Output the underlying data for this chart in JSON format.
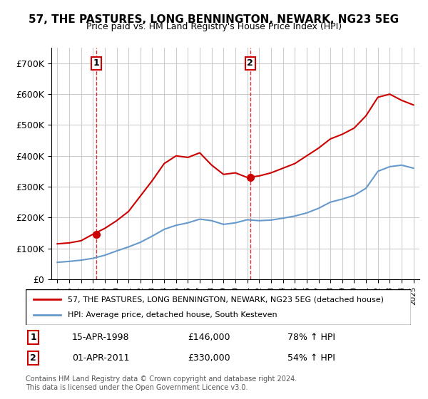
{
  "title": "57, THE PASTURES, LONG BENNINGTON, NEWARK, NG23 5EG",
  "subtitle": "Price paid vs. HM Land Registry's House Price Index (HPI)",
  "legend_line1": "57, THE PASTURES, LONG BENNINGTON, NEWARK, NG23 5EG (detached house)",
  "legend_line2": "HPI: Average price, detached house, South Kesteven",
  "footnote": "Contains HM Land Registry data © Crown copyright and database right 2024.\nThis data is licensed under the Open Government Licence v3.0.",
  "marker1_label": "1",
  "marker1_date": "15-APR-1998",
  "marker1_price": "£146,000",
  "marker1_hpi": "78% ↑ HPI",
  "marker2_label": "2",
  "marker2_date": "01-APR-2011",
  "marker2_price": "£330,000",
  "marker2_hpi": "54% ↑ HPI",
  "red_color": "#cc0000",
  "blue_color": "#6699cc",
  "marker_box_color": "#cc0000",
  "grid_color": "#cccccc",
  "background_color": "#ffffff",
  "ylim": [
    0,
    750000
  ],
  "yticks": [
    0,
    100000,
    200000,
    300000,
    400000,
    500000,
    600000,
    700000
  ],
  "ytick_labels": [
    "£0",
    "£100K",
    "£200K",
    "£300K",
    "£400K",
    "£500K",
    "£600K",
    "£700K"
  ],
  "x_start_year": 1995,
  "x_end_year": 2025,
  "sale1_year": 1998.29,
  "sale1_price": 146000,
  "sale2_year": 2011.25,
  "sale2_price": 330000,
  "hpi_years": [
    1995,
    1996,
    1997,
    1998,
    1999,
    2000,
    2001,
    2002,
    2003,
    2004,
    2005,
    2006,
    2007,
    2008,
    2009,
    2010,
    2011,
    2012,
    2013,
    2014,
    2015,
    2016,
    2017,
    2018,
    2019,
    2020,
    2021,
    2022,
    2023,
    2024,
    2025
  ],
  "hpi_values": [
    55000,
    58000,
    62000,
    68000,
    78000,
    92000,
    105000,
    120000,
    140000,
    162000,
    175000,
    183000,
    195000,
    190000,
    178000,
    183000,
    193000,
    190000,
    192000,
    198000,
    205000,
    215000,
    230000,
    250000,
    260000,
    272000,
    295000,
    350000,
    365000,
    370000,
    360000
  ],
  "red_years": [
    1995,
    1996,
    1997,
    1998,
    1999,
    2000,
    2001,
    2002,
    2003,
    2004,
    2005,
    2006,
    2007,
    2008,
    2009,
    2010,
    2011,
    2012,
    2013,
    2014,
    2015,
    2016,
    2017,
    2018,
    2019,
    2020,
    2021,
    2022,
    2023,
    2024,
    2025
  ],
  "red_values": [
    115000,
    118000,
    125000,
    146000,
    165000,
    190000,
    220000,
    270000,
    320000,
    375000,
    400000,
    395000,
    410000,
    370000,
    340000,
    345000,
    330000,
    335000,
    345000,
    360000,
    375000,
    400000,
    425000,
    455000,
    470000,
    490000,
    530000,
    590000,
    600000,
    580000,
    565000
  ]
}
